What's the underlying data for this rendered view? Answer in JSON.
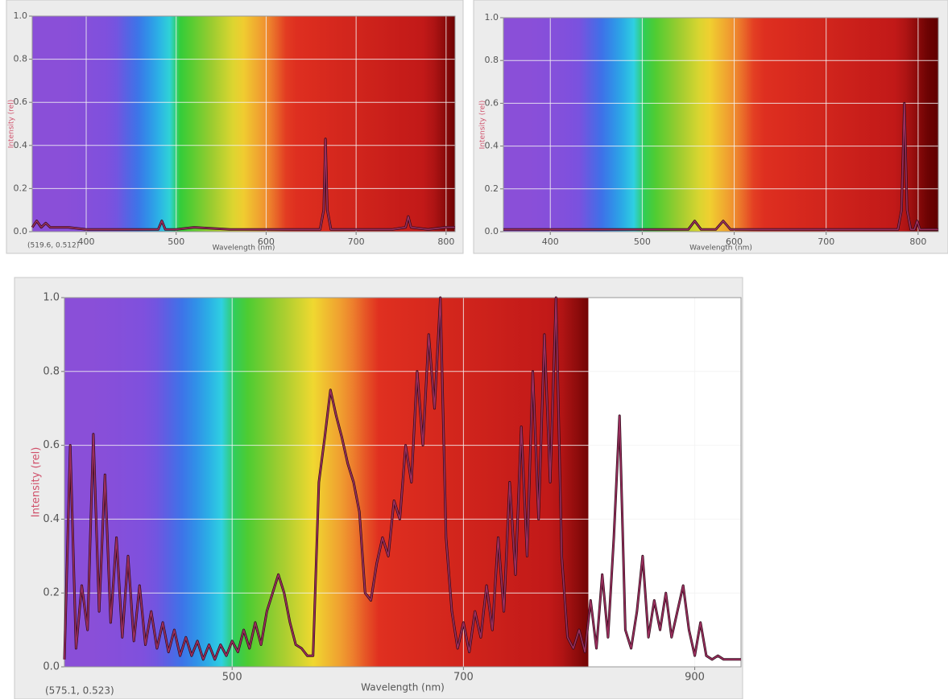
{
  "chart_data": [
    {
      "type": "line",
      "x_label": "Wavelength (nm)",
      "y_label": "Intensity (rel)",
      "status": "(519.6, 0.512)",
      "color": "#9c2f5e",
      "grid": true,
      "xlim": [
        340,
        810
      ],
      "ylim": [
        0,
        1
      ],
      "xticks": [
        400,
        500,
        600,
        700,
        800
      ],
      "yticks": [
        {
          "value": 0,
          "label": "0.0"
        },
        {
          "value": 0.2,
          "label": "0.2"
        },
        {
          "value": 0.4,
          "label": "0.4"
        },
        {
          "value": 0.6,
          "label": "0.6"
        },
        {
          "value": 0.8,
          "label": "0.8"
        },
        {
          "value": 1,
          "label": "1.0"
        }
      ],
      "x": [
        340,
        345,
        350,
        355,
        360,
        380,
        400,
        420,
        440,
        460,
        480,
        484,
        488,
        500,
        520,
        560,
        600,
        640,
        660,
        664,
        666,
        668,
        672,
        700,
        740,
        755,
        758,
        761,
        780,
        800,
        810
      ],
      "values": [
        0.02,
        0.05,
        0.02,
        0.04,
        0.02,
        0.02,
        0.01,
        0.01,
        0.01,
        0.01,
        0.01,
        0.05,
        0.01,
        0.01,
        0.02,
        0.01,
        0.01,
        0.01,
        0.01,
        0.1,
        0.43,
        0.1,
        0.01,
        0.01,
        0.01,
        0.02,
        0.07,
        0.02,
        0.01,
        0.02,
        0.02
      ]
    },
    {
      "type": "line",
      "x_label": "Wavelength (nm)",
      "y_label": "Intensity (rel)",
      "color": "#9c2f5e",
      "grid": true,
      "xlim": [
        349,
        822
      ],
      "ylim": [
        0,
        1
      ],
      "xticks": [
        400,
        500,
        600,
        700,
        800
      ],
      "yticks": [
        {
          "value": 0,
          "label": "0.0"
        },
        {
          "value": 0.2,
          "label": "0.2"
        },
        {
          "value": 0.4,
          "label": "0.4"
        },
        {
          "value": 0.6,
          "label": "0.6"
        },
        {
          "value": 0.8,
          "label": "0.8"
        },
        {
          "value": 1,
          "label": "1.0"
        }
      ],
      "x": [
        349,
        400,
        500,
        550,
        557,
        564,
        580,
        588,
        596,
        650,
        700,
        760,
        778,
        782,
        785,
        788,
        792,
        796,
        799,
        802,
        822
      ],
      "values": [
        0.01,
        0.01,
        0.01,
        0.01,
        0.05,
        0.01,
        0.01,
        0.05,
        0.01,
        0.01,
        0.01,
        0.01,
        0.01,
        0.1,
        0.6,
        0.1,
        0.01,
        0.01,
        0.05,
        0.01,
        0.01
      ]
    },
    {
      "type": "line",
      "x_label": "Wavelength (nm)",
      "y_label": "Intensity (rel)",
      "status": "(575.1, 0.523)",
      "color": "#9c2f5e",
      "grid": true,
      "xlim": [
        355,
        940
      ],
      "ylim": [
        0,
        1
      ],
      "xticks": [
        500,
        700,
        900
      ],
      "yticks": [
        {
          "value": 0,
          "label": "0.0"
        },
        {
          "value": 0.2,
          "label": "0.2"
        },
        {
          "value": 0.4,
          "label": "0.4"
        },
        {
          "value": 0.6,
          "label": "0.6"
        },
        {
          "value": 0.8,
          "label": "0.8"
        },
        {
          "value": 1,
          "label": "1.0"
        }
      ],
      "x": [
        355,
        360,
        365,
        370,
        375,
        380,
        385,
        390,
        395,
        400,
        405,
        410,
        415,
        420,
        425,
        430,
        435,
        440,
        445,
        450,
        455,
        460,
        465,
        470,
        475,
        480,
        485,
        490,
        495,
        500,
        505,
        510,
        515,
        520,
        525,
        530,
        535,
        540,
        545,
        550,
        555,
        560,
        565,
        570,
        575,
        580,
        585,
        590,
        595,
        600,
        605,
        610,
        615,
        620,
        625,
        630,
        635,
        640,
        645,
        650,
        655,
        660,
        665,
        670,
        675,
        680,
        685,
        690,
        695,
        700,
        705,
        710,
        715,
        720,
        725,
        730,
        735,
        740,
        745,
        750,
        755,
        760,
        765,
        770,
        775,
        780,
        785,
        790,
        795,
        800,
        805,
        810,
        815,
        820,
        825,
        830,
        835,
        840,
        845,
        850,
        855,
        860,
        865,
        870,
        875,
        880,
        885,
        890,
        895,
        900,
        905,
        910,
        915,
        920,
        925,
        930,
        935,
        940
      ],
      "values": [
        0.02,
        0.6,
        0.05,
        0.22,
        0.1,
        0.63,
        0.15,
        0.52,
        0.12,
        0.35,
        0.08,
        0.3,
        0.07,
        0.22,
        0.06,
        0.15,
        0.05,
        0.12,
        0.04,
        0.1,
        0.03,
        0.08,
        0.03,
        0.07,
        0.02,
        0.06,
        0.02,
        0.06,
        0.03,
        0.07,
        0.04,
        0.1,
        0.05,
        0.12,
        0.06,
        0.15,
        0.2,
        0.25,
        0.2,
        0.12,
        0.06,
        0.05,
        0.03,
        0.03,
        0.5,
        0.62,
        0.75,
        0.68,
        0.62,
        0.55,
        0.5,
        0.42,
        0.2,
        0.18,
        0.28,
        0.35,
        0.3,
        0.45,
        0.4,
        0.6,
        0.5,
        0.8,
        0.6,
        0.9,
        0.7,
        1.0,
        0.35,
        0.15,
        0.05,
        0.12,
        0.04,
        0.15,
        0.08,
        0.22,
        0.1,
        0.35,
        0.15,
        0.5,
        0.25,
        0.65,
        0.3,
        0.8,
        0.4,
        0.9,
        0.5,
        1.0,
        0.3,
        0.08,
        0.05,
        0.1,
        0.04,
        0.18,
        0.05,
        0.25,
        0.08,
        0.35,
        0.68,
        0.1,
        0.05,
        0.15,
        0.3,
        0.08,
        0.18,
        0.1,
        0.2,
        0.08,
        0.15,
        0.22,
        0.1,
        0.03,
        0.12,
        0.03,
        0.02,
        0.03,
        0.02,
        0.02,
        0.02,
        0.02
      ]
    }
  ]
}
